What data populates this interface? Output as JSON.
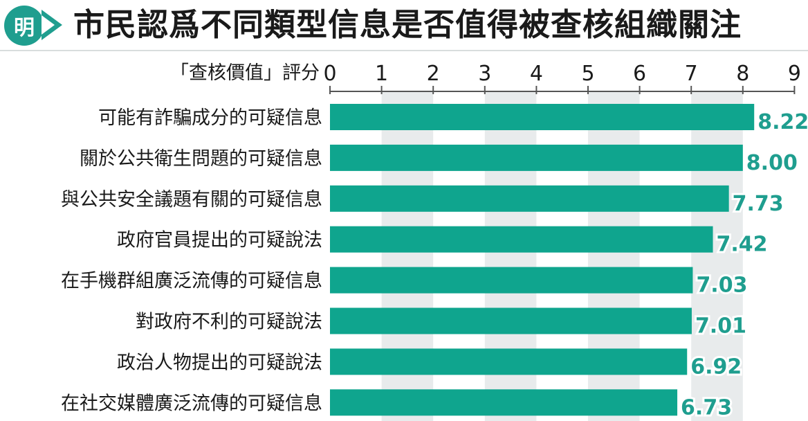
{
  "header": {
    "logo_text": "明",
    "title": "市民認爲不同類型信息是否值得被查核組織關注"
  },
  "colors": {
    "accent": "#1f9e8f",
    "bar": "#0fa58e",
    "band": "#e8ebec"
  },
  "chart_data": {
    "type": "bar",
    "orientation": "horizontal",
    "title": "市民認爲不同類型信息是否值得被查核組織關注",
    "xlabel": "「查核價值」評分",
    "xlim": [
      0,
      9
    ],
    "xticks": [
      "0",
      "1",
      "2",
      "3",
      "4",
      "5",
      "6",
      "7",
      "8",
      "9"
    ],
    "grid": "alternating vertical bands",
    "categories": [
      "可能有詐騙成分的可疑信息",
      "關於公共衛生問題的可疑信息",
      "與公共安全議題有關的可疑信息",
      "政府官員提出的可疑說法",
      "在手機群組廣泛流傳的可疑信息",
      "對政府不利的可疑說法",
      "政治人物提出的可疑說法",
      "在社交媒體廣泛流傳的可疑信息"
    ],
    "values": [
      8.22,
      8.0,
      7.73,
      7.42,
      7.03,
      7.01,
      6.92,
      6.73
    ],
    "value_labels": [
      "8.22",
      "8.00",
      "7.73",
      "7.42",
      "7.03",
      "7.01",
      "6.92",
      "6.73"
    ]
  }
}
